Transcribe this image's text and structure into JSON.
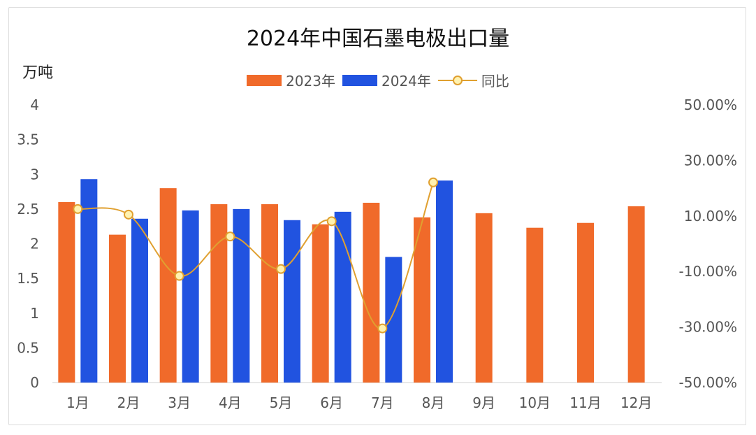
{
  "chart_data": {
    "type": "bar",
    "title": "2024年中国石墨电极出口量",
    "ylabel": "万吨",
    "categories": [
      "1月",
      "2月",
      "3月",
      "4月",
      "5月",
      "6月",
      "7月",
      "8月",
      "9月",
      "10月",
      "11月",
      "12月"
    ],
    "series": [
      {
        "name": "2023年",
        "type": "bar",
        "axis": "left",
        "values": [
          2.6,
          2.13,
          2.8,
          2.57,
          2.57,
          2.28,
          2.59,
          2.38,
          2.44,
          2.23,
          2.3,
          2.54
        ]
      },
      {
        "name": "2024年",
        "type": "bar",
        "axis": "left",
        "values": [
          2.93,
          2.36,
          2.48,
          2.5,
          2.34,
          2.46,
          1.81,
          2.91,
          null,
          null,
          null,
          null
        ]
      },
      {
        "name": "同比",
        "type": "line",
        "axis": "right",
        "values": [
          12.5,
          10.5,
          -11.6,
          2.6,
          -9.1,
          8.1,
          -30.5,
          22.1,
          null,
          null,
          null,
          null
        ]
      }
    ],
    "ylim_left": [
      0,
      4
    ],
    "yticks_left": [
      "0",
      "0.5",
      "1",
      "1.5",
      "2",
      "2.5",
      "3",
      "3.5",
      "4"
    ],
    "ylim_right": [
      -50,
      50
    ],
    "yticks_right": [
      "-50.00%",
      "-30.00%",
      "-10.00%",
      "10.00%",
      "30.00%",
      "50.00%"
    ],
    "legend_position": "top",
    "grid": false
  },
  "colors": {
    "bar_2023": "#f06a2a",
    "bar_2024": "#2153e0",
    "line": "#e0a030",
    "marker_fill": "#fff2b0"
  }
}
